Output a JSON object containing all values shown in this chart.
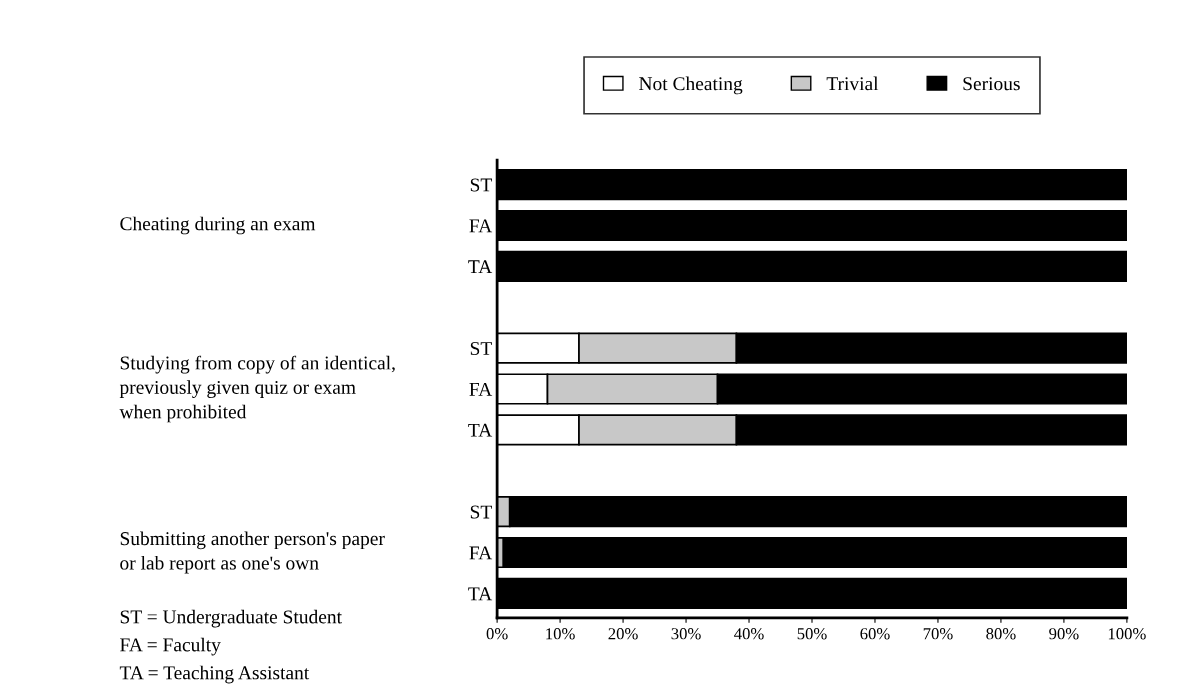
{
  "chart_data": {
    "type": "bar",
    "orientation": "horizontal",
    "stacked": true,
    "categories": [
      "ST",
      "FA",
      "TA",
      null,
      "ST",
      "FA",
      "TA",
      null,
      "ST",
      "FA",
      "TA"
    ],
    "series": [
      {
        "name": "Not Cheating",
        "color": "#ffffff",
        "values": [
          0,
          0,
          0,
          null,
          13,
          8,
          13,
          null,
          0,
          0,
          0
        ]
      },
      {
        "name": "Trivial",
        "color": "#c8c8c8",
        "values": [
          0,
          0,
          0,
          null,
          25,
          27,
          25,
          null,
          2,
          1,
          0
        ]
      },
      {
        "name": "Serious",
        "color": "#000000",
        "values": [
          100,
          100,
          100,
          null,
          62,
          65,
          62,
          null,
          98,
          99,
          100
        ]
      }
    ],
    "xlim": [
      0,
      100
    ],
    "xticks": [
      {
        "value": 0,
        "label": "0%"
      },
      {
        "value": 10,
        "label": "10%"
      },
      {
        "value": 20,
        "label": "20%"
      },
      {
        "value": 30,
        "label": "30%"
      },
      {
        "value": 40,
        "label": "40%"
      },
      {
        "value": 50,
        "label": "50%"
      },
      {
        "value": 60,
        "label": "60%"
      },
      {
        "value": 70,
        "label": "70%"
      },
      {
        "value": 80,
        "label": "80%"
      },
      {
        "value": 90,
        "label": "90%"
      },
      {
        "value": 100,
        "label": "100%"
      }
    ],
    "legend": "top",
    "grid": false,
    "annotations": [
      "Cheating during an exam",
      "Studying from copy of an identical,\npreviously given quiz or exam\nwhen prohibited",
      "Submitting another person's paper\nor lab report as one's own",
      "ST = Undergraduate Student",
      "FA = Faculty",
      "TA = Teaching Assistant"
    ]
  }
}
